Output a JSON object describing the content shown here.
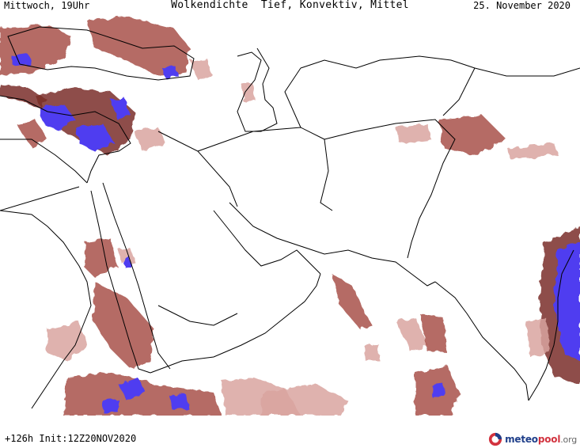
{
  "header": {
    "time_label": "Mittwoch, 19Uhr",
    "title": "Wolkendichte  Tief, Konvektiv, Mittel",
    "date_label": "25. November 2020"
  },
  "footer": {
    "run_info": "+126h Init:12Z20NOV2020",
    "brand": {
      "part1": "meteo",
      "part2": "pool",
      "tld": ".org"
    }
  },
  "map": {
    "colors": {
      "background": "#ffffff",
      "borders": "#000000",
      "cloud_light": "#d9a5a0",
      "cloud_medium": "#a8524a",
      "cloud_dense": "#7a2e28",
      "convective": "#4f3cf0"
    }
  }
}
